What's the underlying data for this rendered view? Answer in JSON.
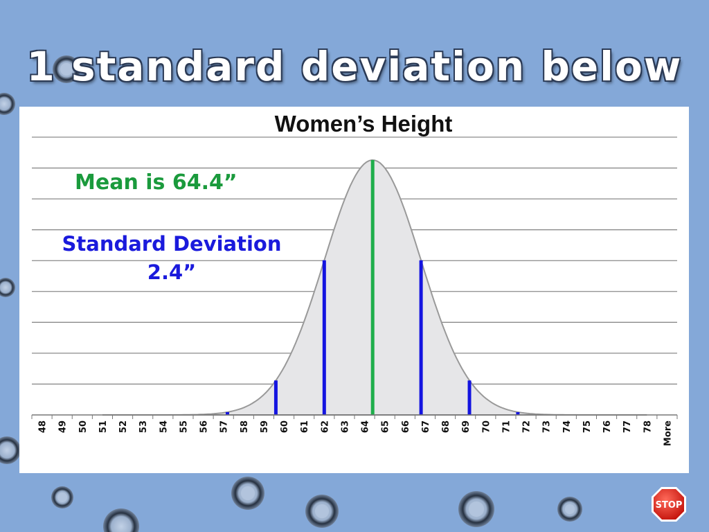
{
  "slide": {
    "title": "1 standard deviation below"
  },
  "annotations": {
    "mean": "Mean is 64.4”",
    "sd_line1": "Standard Deviation",
    "sd_line2": "2.4”"
  },
  "stop_button": {
    "label": "STOP",
    "icon": "stop-sign-icon"
  },
  "colors": {
    "mean_line": "#1fae4b",
    "sd_lines": "#1414e0",
    "curve_fill": "#e6e6e8",
    "curve_stroke": "#999999",
    "gridline": "#8a8a8a",
    "mean_text": "#1a9a3c",
    "sd_text": "#1a1adc"
  },
  "chart_data": {
    "type": "area",
    "title": "Women’s Height",
    "xlabel": "",
    "ylabel": "",
    "x_tick_labels": [
      "48",
      "49",
      "50",
      "51",
      "52",
      "53",
      "54",
      "55",
      "56",
      "57",
      "58",
      "59",
      "60",
      "61",
      "62",
      "63",
      "64",
      "65",
      "66",
      "67",
      "68",
      "69",
      "70",
      "71",
      "72",
      "73",
      "74",
      "75",
      "76",
      "77",
      "78",
      "More"
    ],
    "grid": true,
    "gridline_count": 9,
    "distribution": {
      "mean": 64.4,
      "sd": 2.4
    },
    "curve_x_range": [
      51,
      78
    ],
    "vertical_markers": [
      {
        "x": 57.2,
        "kind": "sd"
      },
      {
        "x": 59.6,
        "kind": "sd"
      },
      {
        "x": 62.0,
        "kind": "sd"
      },
      {
        "x": 64.4,
        "kind": "mean"
      },
      {
        "x": 66.8,
        "kind": "sd"
      },
      {
        "x": 69.2,
        "kind": "sd"
      },
      {
        "x": 71.6,
        "kind": "sd"
      }
    ]
  }
}
